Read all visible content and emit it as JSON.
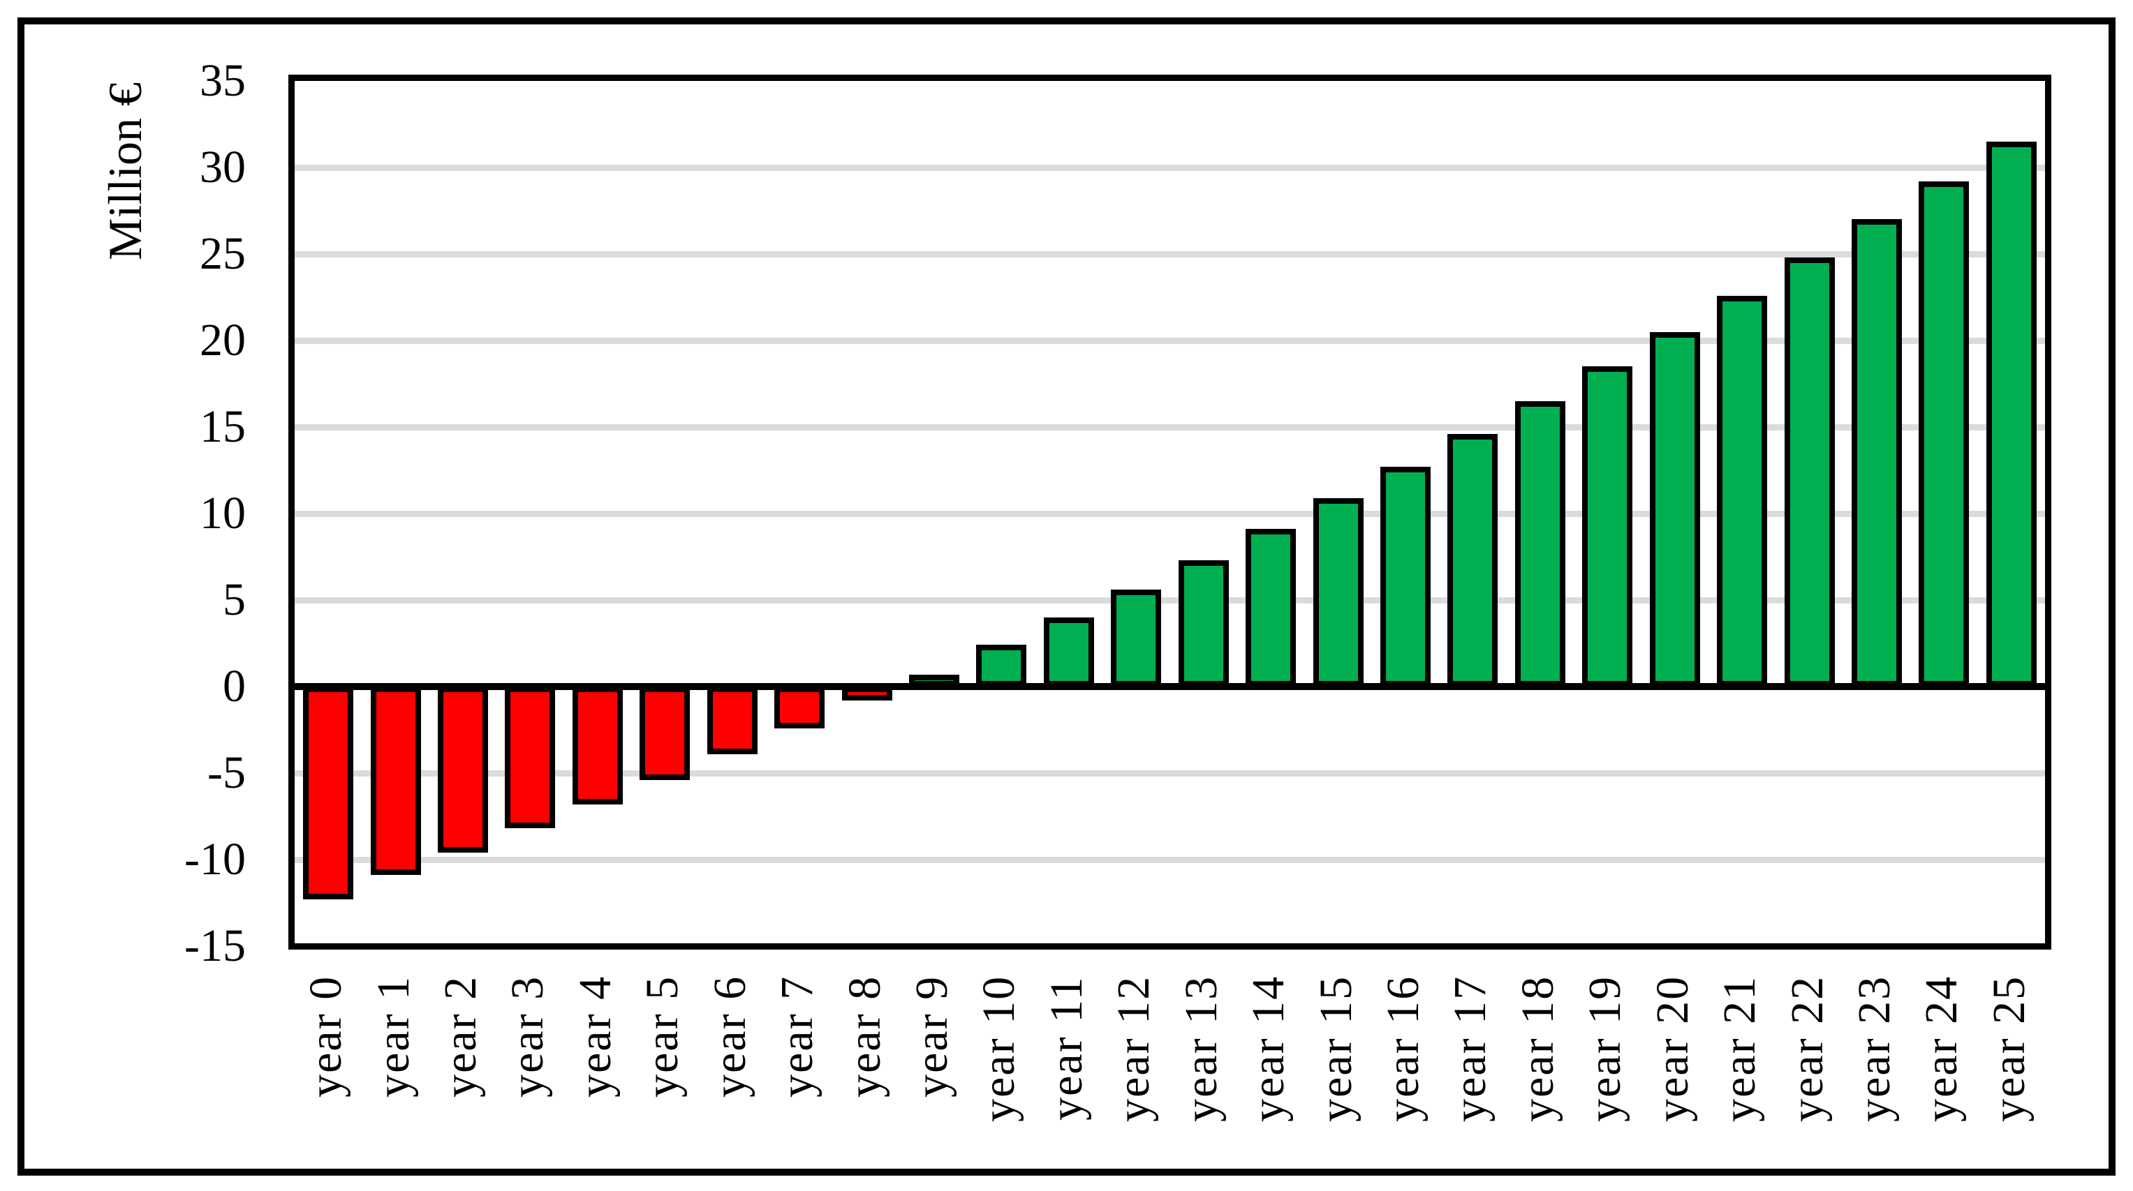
{
  "figure": {
    "background_color": "#FFFFFF",
    "border_color": "#000000"
  },
  "chart_data": {
    "type": "bar",
    "title": "",
    "ylabel": "Million €",
    "xlabel": "",
    "categories": [
      "year 0",
      "year 1",
      "year 2",
      "year 3",
      "year 4",
      "year 5",
      "year 6",
      "year 7",
      "year 8",
      "year 9",
      "year 10",
      "year 11",
      "year 12",
      "year 13",
      "year 14",
      "year 15",
      "year 16",
      "year 17",
      "year 18",
      "year 19",
      "year 20",
      "year 21",
      "year 22",
      "year 23",
      "year 24",
      "year 25"
    ],
    "values": [
      -12.3,
      -10.9,
      -9.6,
      -8.2,
      -6.8,
      -5.4,
      -3.9,
      -2.4,
      -0.8,
      0.7,
      2.4,
      4.0,
      5.6,
      7.3,
      9.1,
      10.9,
      12.7,
      14.6,
      16.5,
      18.5,
      20.5,
      22.6,
      24.8,
      27.0,
      29.2,
      31.5
    ],
    "ylim": [
      -15,
      35
    ],
    "ytick_step": 5,
    "y_ticks": [
      35,
      30,
      25,
      20,
      15,
      10,
      5,
      0,
      -5,
      -10,
      -15
    ],
    "y_tick_labels": [
      "35",
      "30",
      "25",
      "20",
      "15",
      "10",
      "5",
      "0",
      "-5",
      "-10",
      "-15"
    ],
    "gridline_values": [
      30,
      25,
      20,
      15,
      10,
      5,
      -5,
      -10
    ],
    "grid": true,
    "legend_position": "none",
    "colors": {
      "positive_bar": "#00B050",
      "negative_bar": "#FF0000",
      "bar_border": "#000000",
      "gridline": "#DBDBDB",
      "axis_line": "#000000",
      "text": "#000000"
    }
  }
}
